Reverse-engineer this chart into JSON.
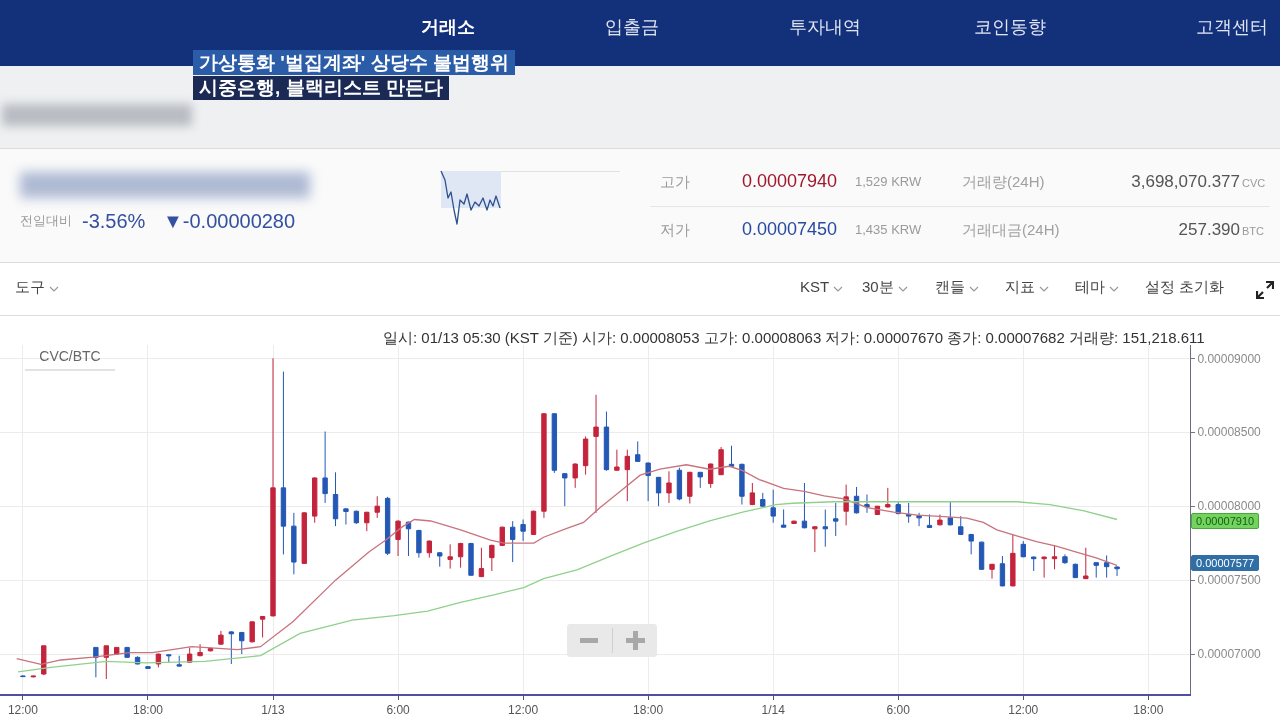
{
  "chart_data": {
    "type": "candlestick",
    "title": "CVC/BTC",
    "x": [
      "--01-12T12:00",
      "--01-12T12:30",
      "--01-12T13:00",
      "--01-12T15:30",
      "--01-12T16:00",
      "--01-12T16:30",
      "--01-12T17:00",
      "--01-12T17:30",
      "--01-12T18:00",
      "--01-12T18:30",
      "--01-12T19:00",
      "--01-12T19:30",
      "--01-12T20:00",
      "--01-12T20:30",
      "--01-12T21:00",
      "--01-12T21:30",
      "--01-12T22:00",
      "--01-12T22:30",
      "--01-12T23:00",
      "--01-12T23:30",
      "--01-13T00:00",
      "--01-13T00:30",
      "--01-13T01:00",
      "--01-13T01:30",
      "--01-13T02:00",
      "--01-13T02:30",
      "--01-13T03:00",
      "--01-13T03:30",
      "--01-13T04:00",
      "--01-13T04:30",
      "--01-13T05:00",
      "--01-13T05:30",
      "--01-13T06:00",
      "--01-13T06:30",
      "--01-13T07:00",
      "--01-13T07:30",
      "--01-13T08:00",
      "--01-13T08:30",
      "--01-13T09:00",
      "--01-13T09:30",
      "--01-13T10:00",
      "--01-13T10:30",
      "--01-13T11:00",
      "--01-13T11:30",
      "--01-13T12:00",
      "--01-13T12:30",
      "--01-13T13:00",
      "--01-13T13:30",
      "--01-13T14:00",
      "--01-13T14:30",
      "--01-13T15:00",
      "--01-13T15:30",
      "--01-13T16:00",
      "--01-13T16:30",
      "--01-13T17:00",
      "--01-13T17:30",
      "--01-13T18:00",
      "--01-13T18:30",
      "--01-13T19:00",
      "--01-13T19:30",
      "--01-13T20:00",
      "--01-13T20:30",
      "--01-13T21:00",
      "--01-13T21:30",
      "--01-13T22:00",
      "--01-13T22:30",
      "--01-13T23:00",
      "--01-13T23:30",
      "--01-14T00:00",
      "--01-14T00:30",
      "--01-14T01:00",
      "--01-14T01:30",
      "--01-14T02:00",
      "--01-14T02:30",
      "--01-14T03:00",
      "--01-14T03:30",
      "--01-14T04:00",
      "--01-14T04:30",
      "--01-14T05:00",
      "--01-14T05:30",
      "--01-14T06:00",
      "--01-14T06:30",
      "--01-14T07:00",
      "--01-14T07:30",
      "--01-14T08:00",
      "--01-14T08:30",
      "--01-14T09:00",
      "--01-14T09:30",
      "--01-14T10:00",
      "--01-14T10:30",
      "--01-14T11:00",
      "--01-14T11:30",
      "--01-14T12:00",
      "--01-14T12:30",
      "--01-14T13:00",
      "--01-14T13:30",
      "--01-14T14:00",
      "--01-14T14:30",
      "--01-14T15:00",
      "--01-14T15:30",
      "--01-14T16:00",
      "--01-14T16:30"
    ],
    "ohlc": [
      [
        6.852e-05,
        6.855e-05,
        6.845e-05,
        6.848e-05
      ],
      [
        6.846e-05,
        6.853e-05,
        6.843e-05,
        6.851e-05
      ],
      [
        6.865e-05,
        7.056e-05,
        6.858e-05,
        7.056e-05
      ],
      [
        7.045e-05,
        7.045e-05,
        6.843e-05,
        6.978e-05
      ],
      [
        6.978e-05,
        7.056e-05,
        6.831e-05,
        7.056e-05
      ],
      [
        7e-05,
        7.045e-05,
        6.995e-05,
        7.045e-05
      ],
      [
        7.045e-05,
        7.048e-05,
        6.975e-05,
        6.978e-05
      ],
      [
        6.978e-05,
        6.985e-05,
        6.93e-05,
        6.933e-05
      ],
      [
        6.915e-05,
        6.917e-05,
        6.9e-05,
        6.903e-05
      ],
      [
        6.933e-05,
        7.003e-05,
        6.91e-05,
        7e-05
      ],
      [
        6.995e-05,
        6.998e-05,
        6.944e-05,
        6.989e-05
      ],
      [
        6.928e-05,
        6.989e-05,
        6.917e-05,
        6.919e-05
      ],
      [
        6.944e-05,
        7.045e-05,
        6.94e-05,
        7e-05
      ],
      [
        6.989e-05,
        7.067e-05,
        6.985e-05,
        7.011e-05
      ],
      [
        7.022e-05,
        7.045e-05,
        7.018e-05,
        7.038e-05
      ],
      [
        7.067e-05,
        7.157e-05,
        7.063e-05,
        7.128e-05
      ],
      [
        7.15e-05,
        7.155e-05,
        6.933e-05,
        7.137e-05
      ],
      [
        7.146e-05,
        7.15e-05,
        7e-05,
        7.09e-05
      ],
      [
        7.083e-05,
        7.22e-05,
        7.078e-05,
        7.218e-05
      ],
      [
        7.236e-05,
        7.258e-05,
        7.112e-05,
        7.254e-05
      ],
      [
        7.258e-05,
        9e-05,
        7.255e-05,
        8.124e-05
      ],
      [
        8.124e-05,
        8.91e-05,
        7.674e-05,
        7.865e-05
      ],
      [
        7.865e-05,
        7.955e-05,
        7.539e-05,
        7.622e-05
      ],
      [
        7.613e-05,
        7.96e-05,
        7.61e-05,
        7.955e-05
      ],
      [
        7.933e-05,
        8.195e-05,
        7.888e-05,
        8.191e-05
      ],
      [
        8.191e-05,
        8.505e-05,
        8.022e-05,
        8.085e-05
      ],
      [
        8.079e-05,
        8.229e-05,
        7.865e-05,
        7.915e-05
      ],
      [
        7.982e-05,
        7.985e-05,
        7.876e-05,
        7.964e-05
      ],
      [
        7.966e-05,
        7.97e-05,
        7.88e-05,
        7.888e-05
      ],
      [
        7.888e-05,
        7.962e-05,
        7.831e-05,
        7.959e-05
      ],
      [
        7.959e-05,
        8.067e-05,
        7.921e-05,
        8e-05
      ],
      [
        8.053e-05,
        8.063e-05,
        7.67e-05,
        7.682e-05
      ],
      [
        7.775e-05,
        7.905e-05,
        7.663e-05,
        7.899e-05
      ],
      [
        7.892e-05,
        7.896e-05,
        7.663e-05,
        7.847e-05
      ],
      [
        7.836e-05,
        7.84e-05,
        7.652e-05,
        7.685e-05
      ],
      [
        7.685e-05,
        7.768e-05,
        7.652e-05,
        7.764e-05
      ],
      [
        7.685e-05,
        7.69e-05,
        7.591e-05,
        7.663e-05
      ],
      [
        7.64e-05,
        7.742e-05,
        7.578e-05,
        7.658e-05
      ],
      [
        7.658e-05,
        7.752e-05,
        7.584e-05,
        7.748e-05
      ],
      [
        7.748e-05,
        7.752e-05,
        7.53e-05,
        7.533e-05
      ],
      [
        7.524e-05,
        7.719e-05,
        7.52e-05,
        7.578e-05
      ],
      [
        7.652e-05,
        7.74e-05,
        7.562e-05,
        7.735e-05
      ],
      [
        7.735e-05,
        7.862e-05,
        7.73e-05,
        7.858e-05
      ],
      [
        7.858e-05,
        7.899e-05,
        7.622e-05,
        7.775e-05
      ],
      [
        7.876e-05,
        7.91e-05,
        7.764e-05,
        7.831e-05
      ],
      [
        7.809e-05,
        7.97e-05,
        7.805e-05,
        7.966e-05
      ],
      [
        7.966e-05,
        8.63e-05,
        7.921e-05,
        8.625e-05
      ],
      [
        8.625e-05,
        8.63e-05,
        8.225e-05,
        8.243e-05
      ],
      [
        8.22e-05,
        8.225e-05,
        8e-05,
        8.191e-05
      ],
      [
        8.191e-05,
        8.29e-05,
        8.124e-05,
        8.285e-05
      ],
      [
        8.274e-05,
        8.472e-05,
        8.213e-05,
        8.454e-05
      ],
      [
        8.472e-05,
        8.753e-05,
        7.955e-05,
        8.535e-05
      ],
      [
        8.535e-05,
        8.64e-05,
        8.24e-05,
        8.247e-05
      ],
      [
        8.243e-05,
        8.382e-05,
        8.24e-05,
        8.265e-05
      ],
      [
        8.247e-05,
        8.382e-05,
        8.034e-05,
        8.337e-05
      ],
      [
        8.348e-05,
        8.438e-05,
        8.3e-05,
        8.303e-05
      ],
      [
        8.292e-05,
        8.295e-05,
        8.034e-05,
        8.207e-05
      ],
      [
        8.195e-05,
        8.198e-05,
        8e-05,
        8.09e-05
      ],
      [
        8.09e-05,
        8.236e-05,
        8.022e-05,
        8.157e-05
      ],
      [
        8.243e-05,
        8.26e-05,
        8.04e-05,
        8.049e-05
      ],
      [
        8.067e-05,
        8.233e-05,
        8.018e-05,
        8.229e-05
      ],
      [
        8.229e-05,
        8.232e-05,
        8.124e-05,
        8.198e-05
      ],
      [
        8.153e-05,
        8.29e-05,
        8.124e-05,
        8.285e-05
      ],
      [
        8.213e-05,
        8.4e-05,
        8.21e-05,
        8.382e-05
      ],
      [
        8.283e-05,
        8.409e-05,
        8.266e-05,
        8.27e-05
      ],
      [
        8.283e-05,
        8.288e-05,
        8.011e-05,
        8.067e-05
      ],
      [
        8.011e-05,
        8.157e-05,
        8.007e-05,
        8.09e-05
      ],
      [
        8.045e-05,
        8.09e-05,
        7.998e-05,
        8e-05
      ],
      [
        7.989e-05,
        8.112e-05,
        7.888e-05,
        7.933e-05
      ],
      [
        7.872e-05,
        7.978e-05,
        7.855e-05,
        7.858e-05
      ],
      [
        7.883e-05,
        7.902e-05,
        7.88e-05,
        7.899e-05
      ],
      [
        7.899e-05,
        8.157e-05,
        7.85e-05,
        7.854e-05
      ],
      [
        7.847e-05,
        7.863e-05,
        7.69e-05,
        7.861e-05
      ],
      [
        7.861e-05,
        7.977e-05,
        7.726e-05,
        7.847e-05
      ],
      [
        7.915e-05,
        8.022e-05,
        7.798e-05,
        7.899e-05
      ],
      [
        7.966e-05,
        8.146e-05,
        7.87e-05,
        8.063e-05
      ],
      [
        8.067e-05,
        8.13e-05,
        7.95e-05,
        7.955e-05
      ],
      [
        8.011e-05,
        8.079e-05,
        7.955e-05,
        7.995e-05
      ],
      [
        7.944e-05,
        8e-05,
        7.94e-05,
        8e-05
      ],
      [
        7.995e-05,
        8.124e-05,
        7.99e-05,
        8.011e-05
      ],
      [
        8.011e-05,
        8.034e-05,
        7.945e-05,
        7.95e-05
      ],
      [
        7.944e-05,
        8.022e-05,
        7.888e-05,
        7.933e-05
      ],
      [
        7.937e-05,
        7.955e-05,
        7.865e-05,
        7.921e-05
      ],
      [
        7.87e-05,
        7.944e-05,
        7.853e-05,
        7.856e-05
      ],
      [
        7.874e-05,
        7.944e-05,
        7.87e-05,
        7.906e-05
      ],
      [
        7.921e-05,
        8.034e-05,
        7.87e-05,
        7.874e-05
      ],
      [
        7.861e-05,
        7.933e-05,
        7.805e-05,
        7.809e-05
      ],
      [
        7.809e-05,
        7.812e-05,
        7.674e-05,
        7.764e-05
      ],
      [
        7.757e-05,
        7.76e-05,
        7.57e-05,
        7.573e-05
      ],
      [
        7.573e-05,
        7.61e-05,
        7.51e-05,
        7.607e-05
      ],
      [
        7.611e-05,
        7.663e-05,
        7.458e-05,
        7.461e-05
      ],
      [
        7.461e-05,
        7.809e-05,
        7.458e-05,
        7.681e-05
      ],
      [
        7.742e-05,
        7.764e-05,
        7.655e-05,
        7.658e-05
      ],
      [
        7.656e-05,
        7.66e-05,
        7.562e-05,
        7.645e-05
      ],
      [
        7.645e-05,
        7.66e-05,
        7.517e-05,
        7.656e-05
      ],
      [
        7.645e-05,
        7.735e-05,
        7.573e-05,
        7.658e-05
      ],
      [
        7.658e-05,
        7.674e-05,
        7.61e-05,
        7.618e-05
      ],
      [
        7.607e-05,
        7.612e-05,
        7.515e-05,
        7.517e-05
      ],
      [
        7.51e-05,
        7.719e-05,
        7.508e-05,
        7.528e-05
      ],
      [
        7.618e-05,
        7.622e-05,
        7.517e-05,
        7.6e-05
      ],
      [
        7.618e-05,
        7.667e-05,
        7.517e-05,
        7.591e-05
      ],
      [
        7.589e-05,
        7.593e-05,
        7.528e-05,
        7.577e-05
      ]
    ],
    "colors": [
      "#2458b5",
      "#c3243c",
      "#c3243c",
      "#2458b5",
      "#c3243c",
      "#c3243c",
      "#2458b5",
      "#2458b5",
      "#2458b5",
      "#c3243c",
      "#2458b5",
      "#2458b5",
      "#c3243c",
      "#c3243c",
      "#c3243c",
      "#c3243c",
      "#2458b5",
      "#2458b5",
      "#c3243c",
      "#c3243c",
      "#c3243c",
      "#2458b5",
      "#2458b5",
      "#c3243c",
      "#c3243c",
      "#2458b5",
      "#2458b5",
      "#2458b5",
      "#2458b5",
      "#c3243c",
      "#c3243c",
      "#2458b5",
      "#c3243c",
      "#2458b5",
      "#2458b5",
      "#c3243c",
      "#2458b5",
      "#c3243c",
      "#c3243c",
      "#2458b5",
      "#c3243c",
      "#c3243c",
      "#c3243c",
      "#2458b5",
      "#2458b5",
      "#c3243c",
      "#c3243c",
      "#2458b5",
      "#2458b5",
      "#c3243c",
      "#c3243c",
      "#c3243c",
      "#2458b5",
      "#c3243c",
      "#c3243c",
      "#2458b5",
      "#2458b5",
      "#2458b5",
      "#c3243c",
      "#2458b5",
      "#c3243c",
      "#2458b5",
      "#c3243c",
      "#c3243c",
      "#2458b5",
      "#2458b5",
      "#c3243c",
      "#2458b5",
      "#2458b5",
      "#2458b5",
      "#c3243c",
      "#2458b5",
      "#c3243c",
      "#2458b5",
      "#2458b5",
      "#c3243c",
      "#2458b5",
      "#2458b5",
      "#c3243c",
      "#c3243c",
      "#2458b5",
      "#2458b5",
      "#2458b5",
      "#2458b5",
      "#c3243c",
      "#2458b5",
      "#2458b5",
      "#2458b5",
      "#2458b5",
      "#c3243c",
      "#2458b5",
      "#c3243c",
      "#2458b5",
      "#2458b5",
      "#c3243c",
      "#c3243c",
      "#2458b5",
      "#2458b5",
      "#c3243c",
      "#2458b5",
      "#2458b5",
      "#2458b5"
    ],
    "series": [
      {
        "type": "line",
        "color": "#c8737d",
        "x": [
          "--01-12T11:42",
          "--01-12T12:52",
          "--01-12T13:49",
          "--01-12T15:23",
          "--01-12T17:07",
          "--01-12T18:13",
          "--01-12T20:06",
          "--01-12T22:18",
          "--01-12T23:24",
          "--01-13T00:58",
          "--01-13T03:00",
          "--01-13T04:36",
          "--01-13T05:24",
          "--01-13T06:12",
          "--01-13T06:47",
          "--01-13T07:34",
          "--01-13T09:00",
          "--01-13T10:26",
          "--01-13T11:05",
          "--01-13T12:31",
          "--01-13T12:59",
          "--01-13T14:06",
          "--01-13T14:54",
          "--01-13T15:41",
          "--01-13T16:39",
          "--01-13T17:37",
          "--01-13T18:34",
          "--01-13T19:50",
          "--01-13T20:57",
          "--01-13T21:54",
          "--01-13T22:32",
          "--01-13T23:20",
          "--01-14T00:30",
          "--01-14T01:29",
          "--01-14T02:27",
          "--01-14T03:24",
          "--01-14T04:31",
          "--01-14T05:47",
          "--01-14T06:55",
          "--01-14T08:11",
          "--01-14T09:18",
          "--01-14T10:05",
          "--01-14T10:44",
          "--01-14T11:41",
          "--01-14T12:38",
          "--01-14T13:35",
          "--01-14T14:33",
          "--01-14T15:30",
          "--01-14T16:30"
        ],
        "values": [
          6.97e-05,
          6.93e-05,
          6.96e-05,
          6.98e-05,
          7.01e-05,
          7.01e-05,
          7.05e-05,
          7.03e-05,
          7.05e-05,
          7.22e-05,
          7.5e-05,
          7.69e-05,
          7.77e-05,
          7.86e-05,
          7.91e-05,
          7.9e-05,
          7.84e-05,
          7.77e-05,
          7.75e-05,
          7.75e-05,
          7.79e-05,
          7.85e-05,
          7.89e-05,
          7.99e-05,
          8.1e-05,
          8.21e-05,
          8.25e-05,
          8.28e-05,
          8.25e-05,
          8.27e-05,
          8.24e-05,
          8.18e-05,
          8.12e-05,
          8.1e-05,
          8.07e-05,
          8.05e-05,
          7.99e-05,
          7.96e-05,
          7.94e-05,
          7.93e-05,
          7.92e-05,
          7.89e-05,
          7.84e-05,
          7.8e-05,
          7.76e-05,
          7.73e-05,
          7.69e-05,
          7.65e-05,
          7.6e-05
        ]
      },
      {
        "type": "line",
        "color": "#8fd18a",
        "x": [
          "--01-12T11:46",
          "--01-12T13:20",
          "--01-12T16:01",
          "--01-12T17:54",
          "--01-12T20:44",
          "--01-12T23:24",
          "--01-13T01:18",
          "--01-13T03:48",
          "--01-13T05:49",
          "--01-13T07:25",
          "--01-13T09:00",
          "--01-13T10:36",
          "--01-13T12:02",
          "--01-13T12:59",
          "--01-13T14:35",
          "--01-13T16:10",
          "--01-13T17:46",
          "--01-13T19:22",
          "--01-13T20:57",
          "--01-13T22:32",
          "--01-14T00:08",
          "--01-14T00:56",
          "--01-14T02:56",
          "--01-14T05:19",
          "--01-14T08:30",
          "--01-14T11:41",
          "--01-14T13:17",
          "--01-14T14:52",
          "--01-14T16:30"
        ],
        "values": [
          6.88e-05,
          6.91e-05,
          6.95e-05,
          6.94e-05,
          6.95e-05,
          6.99e-05,
          7.14e-05,
          7.23e-05,
          7.26e-05,
          7.29e-05,
          7.35e-05,
          7.4e-05,
          7.45e-05,
          7.51e-05,
          7.57e-05,
          7.66e-05,
          7.75e-05,
          7.83e-05,
          7.9e-05,
          7.96e-05,
          8.01e-05,
          8.02e-05,
          8.03e-05,
          8.03e-05,
          8.03e-05,
          8.03e-05,
          8.01e-05,
          7.97e-05,
          7.91e-05
        ]
      }
    ],
    "xlim": [
      "--01-12T10:54",
      "--01-14T20:00"
    ],
    "xticks": [
      {
        "value": "--01-12T12:00",
        "label": "12:00"
      },
      {
        "value": "--01-12T18:00",
        "label": "18:00"
      },
      {
        "value": "--01-13T00:00",
        "label": "1/13"
      },
      {
        "value": "--01-13T06:00",
        "label": "6:00"
      },
      {
        "value": "--01-13T12:00",
        "label": "12:00"
      },
      {
        "value": "--01-13T18:00",
        "label": "18:00"
      },
      {
        "value": "--01-14T00:00",
        "label": "1/14"
      },
      {
        "value": "--01-14T06:00",
        "label": "6:00"
      },
      {
        "value": "--01-14T12:00",
        "label": "12:00"
      },
      {
        "value": "--01-14T18:00",
        "label": "18:00"
      }
    ],
    "ylim": [
      6.73e-05,
      9.09e-05
    ],
    "yticks": [
      {
        "value": 7e-05,
        "label": "0.00007000"
      },
      {
        "value": 7.5e-05,
        "label": "0.00007500"
      },
      {
        "value": 8e-05,
        "label": "0.00008000"
      },
      {
        "value": 8.5e-05,
        "label": "0.00008500"
      },
      {
        "value": 9e-05,
        "label": "0.00009000"
      }
    ],
    "grid": true,
    "annotations": [
      "가상통화 '벌집계좌' 상당수 불법행위",
      "시중은행, 블랙리스트 만든다",
      "거래소",
      "입출금",
      "투자내역",
      "코인동향",
      "고객센터",
      "전일대비",
      "-3.56%",
      "▼-0.00000280",
      "고가",
      "0.00007940",
      "1,529 KRW",
      "거래량(24H)",
      "3,698,070.377",
      "CVC",
      "저가",
      "0.00007450",
      "1,435 KRW",
      "거래대금(24H)",
      "257.390",
      "BTC",
      "도구",
      "KST",
      "30분",
      "캔들",
      "지표",
      "테마",
      "설정 초기화",
      "일시: 01/13 05:30 (KST 기준) 시가: 0.00008053 고가: 0.00008063 저가: 0.00007670 종가: 0.00007682 거래량: 151,218.611",
      "0.00007910",
      "0.00007577"
    ]
  }
}
